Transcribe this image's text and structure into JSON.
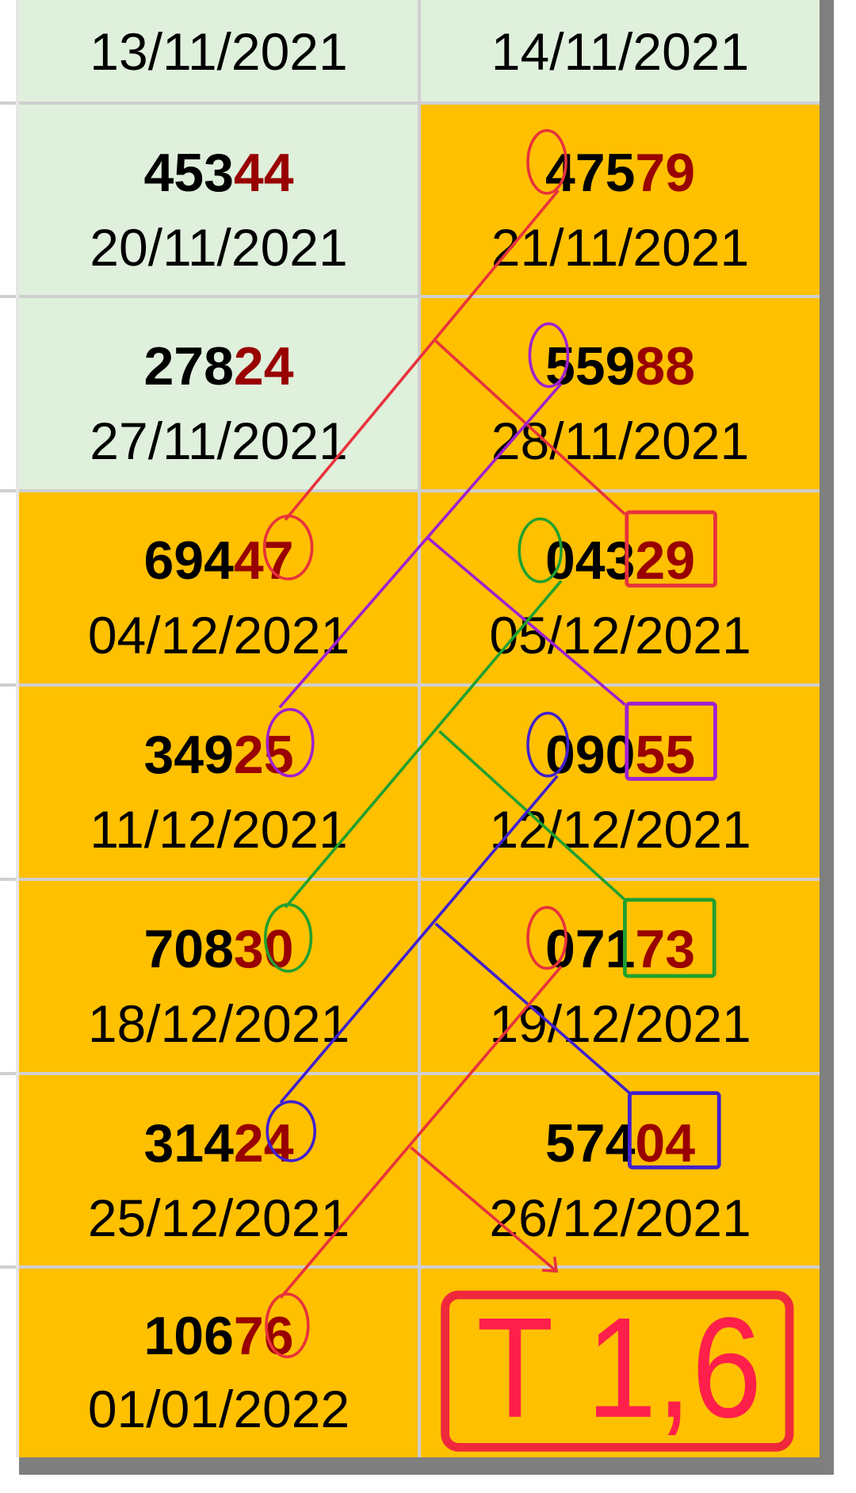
{
  "colors": {
    "green_cell": "#dff0dc",
    "orange_cell": "#ffc000",
    "tail_digits": "#990000",
    "result": "#f0283c"
  },
  "header": {
    "left_date": "13/11/2021",
    "right_date": "14/11/2021"
  },
  "rows": [
    {
      "left": {
        "main": "453",
        "tail": "44",
        "date": "20/11/2021",
        "fill": "green"
      },
      "right": {
        "main": "475",
        "tail": "79",
        "date": "21/11/2021",
        "fill": "orange"
      }
    },
    {
      "left": {
        "main": "278",
        "tail": "24",
        "date": "27/11/2021",
        "fill": "green"
      },
      "right": {
        "main": "559",
        "tail": "88",
        "date": "28/11/2021",
        "fill": "orange"
      }
    },
    {
      "left": {
        "main": "694",
        "tail": "47",
        "date": "04/12/2021",
        "fill": "orange"
      },
      "right": {
        "main": "043",
        "tail": "29",
        "date": "05/12/2021",
        "fill": "orange"
      }
    },
    {
      "left": {
        "main": "349",
        "tail": "25",
        "date": "11/12/2021",
        "fill": "orange"
      },
      "right": {
        "main": "090",
        "tail": "55",
        "date": "12/12/2021",
        "fill": "orange"
      }
    },
    {
      "left": {
        "main": "708",
        "tail": "30",
        "date": "18/12/2021",
        "fill": "orange"
      },
      "right": {
        "main": "071",
        "tail": "73",
        "date": "19/12/2021",
        "fill": "orange"
      }
    },
    {
      "left": {
        "main": "314",
        "tail": "24",
        "date": "25/12/2021",
        "fill": "orange"
      },
      "right": {
        "main": "574",
        "tail": "04",
        "date": "26/12/2021",
        "fill": "orange"
      }
    },
    {
      "left": {
        "main": "106",
        "tail": "76",
        "date": "01/01/2022",
        "fill": "orange"
      },
      "right": null
    }
  ],
  "prediction": {
    "label": "T 1,6"
  },
  "annotation_colors": [
    "#e8323c",
    "#a020d0",
    "#20a030",
    "#4020d0",
    "#e8323c"
  ]
}
